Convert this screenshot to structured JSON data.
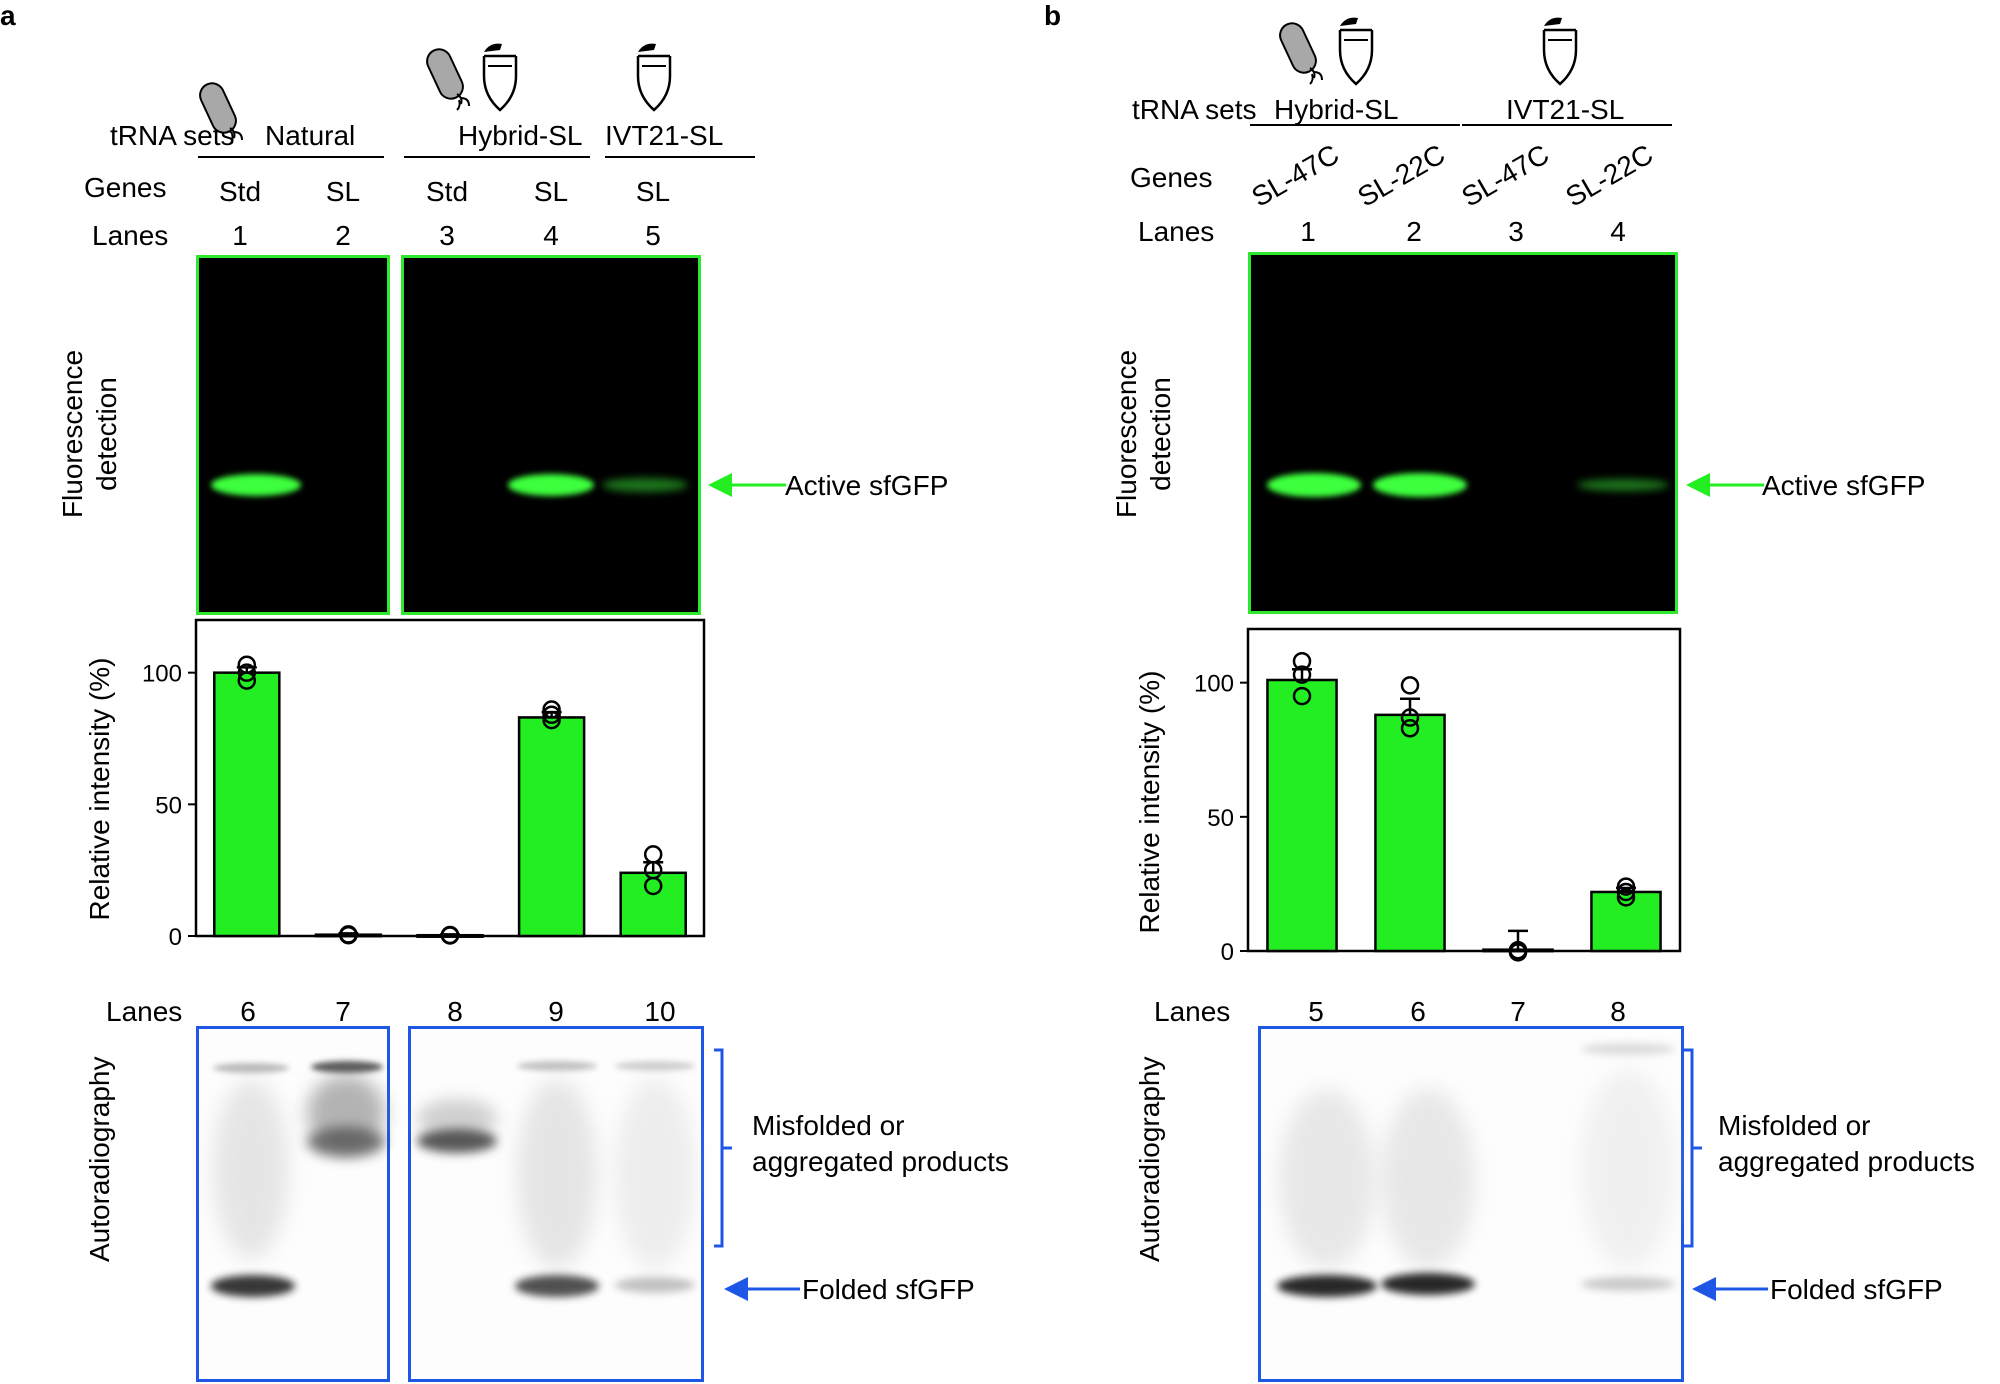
{
  "panel_a": {
    "letter": "a",
    "header": {
      "trna_label": "tRNA sets",
      "genes_label": "Genes",
      "lanes_label": "Lanes",
      "groups": [
        "Natural",
        "Hybrid-SL",
        "IVT21-SL"
      ],
      "genes": [
        "Std",
        "SL",
        "Std",
        "SL",
        "SL"
      ],
      "lanes_top": [
        "1",
        "2",
        "3",
        "4",
        "5"
      ]
    },
    "fluorescence_label": [
      "Fluorescence",
      "detection"
    ],
    "active_label": "Active sfGFP",
    "chart_data": {
      "type": "bar",
      "categories": [
        "1",
        "2",
        "3",
        "4",
        "5"
      ],
      "values": [
        100,
        0.5,
        0.3,
        83,
        24
      ],
      "errors": [
        2,
        0.5,
        0.3,
        2,
        4
      ],
      "points": [
        [
          103,
          100,
          97
        ],
        [
          0.5,
          0.3,
          0.6
        ],
        [
          0.3,
          0.2,
          0.4
        ],
        [
          86,
          84,
          82
        ],
        [
          31,
          25,
          19
        ]
      ],
      "ylabel": "Relative intensity (%)",
      "yticks": [
        0,
        50,
        100
      ],
      "ylim": [
        0,
        120
      ],
      "bar_color": "#22ee22"
    },
    "lanes_bottom_label": "Lanes",
    "lanes_bottom": [
      "6",
      "7",
      "8",
      "9",
      "10"
    ],
    "autorad_label": "Autoradiography",
    "misfolded_label": [
      "Misfolded or",
      "aggregated products"
    ],
    "folded_label": "Folded sfGFP"
  },
  "panel_b": {
    "letter": "b",
    "header": {
      "trna_label": "tRNA sets",
      "genes_label": "Genes",
      "lanes_label": "Lanes",
      "groups": [
        "Hybrid-SL",
        "IVT21-SL"
      ],
      "genes": [
        "SL-47C",
        "SL-22C",
        "SL-47C",
        "SL-22C"
      ],
      "lanes_top": [
        "1",
        "2",
        "3",
        "4"
      ]
    },
    "fluorescence_label": [
      "Fluorescence",
      "detection"
    ],
    "active_label": "Active sfGFP",
    "chart_data": {
      "type": "bar",
      "categories": [
        "1",
        "2",
        "3",
        "4"
      ],
      "values": [
        101,
        88,
        0.5,
        22
      ],
      "errors": [
        4,
        6,
        7,
        1.5
      ],
      "points": [
        [
          108,
          103,
          95
        ],
        [
          99,
          87,
          83
        ],
        [
          -0.5,
          0.3,
          0.2
        ],
        [
          24,
          22,
          20
        ]
      ],
      "ylabel": "Relative intensity (%)",
      "yticks": [
        0,
        50,
        100
      ],
      "ylim": [
        0,
        120
      ],
      "bar_color": "#22ee22"
    },
    "lanes_bottom_label": "Lanes",
    "lanes_bottom": [
      "5",
      "6",
      "7",
      "8"
    ],
    "autorad_label": "Autoradiography",
    "misfolded_label": [
      "Misfolded or",
      "aggregated products"
    ],
    "folded_label": "Folded sfGFP"
  },
  "colors": {
    "gel_green_border": "#2ee82e",
    "gel_blue_border": "#1e56e6",
    "arrow_green": "#22ee22",
    "arrow_blue": "#1e56e6"
  }
}
